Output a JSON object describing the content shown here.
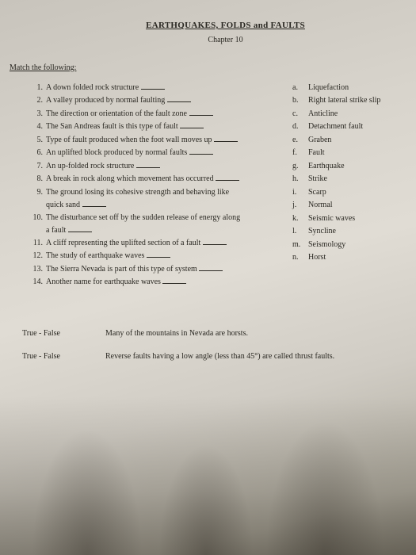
{
  "header": {
    "title": "EARTHQUAKES, FOLDS and FAULTS",
    "chapter": "Chapter 10"
  },
  "section_label": "Match the following:",
  "questions": [
    {
      "n": "1.",
      "text": "A down folded rock structure"
    },
    {
      "n": "2.",
      "text": "A valley produced by normal faulting"
    },
    {
      "n": "3.",
      "text": "The direction or orientation of the fault zone"
    },
    {
      "n": "4.",
      "text": "The San Andreas fault is this type of fault"
    },
    {
      "n": "5.",
      "text": "Type of fault produced when the foot wall moves up"
    },
    {
      "n": "6.",
      "text": "An uplifted block produced by normal faults"
    },
    {
      "n": "7.",
      "text": "An up-folded rock structure"
    },
    {
      "n": "8.",
      "text": "A break in rock along which movement has occurred"
    },
    {
      "n": "9.",
      "text": "The ground losing its cohesive strength and behaving like",
      "sub": "quick sand"
    },
    {
      "n": "10.",
      "text": "The disturbance set off by the sudden release of energy along",
      "sub": "a fault"
    },
    {
      "n": "11.",
      "text": "A cliff representing the uplifted section of a fault"
    },
    {
      "n": "12.",
      "text": "The study of earthquake waves"
    },
    {
      "n": "13.",
      "text": "The Sierra Nevada is part of this type of system"
    },
    {
      "n": "14.",
      "text": "Another name for earthquake waves"
    }
  ],
  "answers": [
    {
      "l": "a.",
      "text": "Liquefaction"
    },
    {
      "l": "b.",
      "text": "Right lateral strike slip"
    },
    {
      "l": "c.",
      "text": "Anticline"
    },
    {
      "l": "d.",
      "text": "Detachment fault"
    },
    {
      "l": "e.",
      "text": "Graben"
    },
    {
      "l": "f.",
      "text": "Fault"
    },
    {
      "l": "g.",
      "text": "Earthquake"
    },
    {
      "l": "h.",
      "text": "Strike"
    },
    {
      "l": "i.",
      "text": "Scarp"
    },
    {
      "l": "j.",
      "text": "Normal"
    },
    {
      "l": "k.",
      "text": "Seismic waves"
    },
    {
      "l": "l.",
      "text": "Syncline"
    },
    {
      "l": "m.",
      "text": "Seismology"
    },
    {
      "l": "n.",
      "text": "Horst"
    }
  ],
  "tf": {
    "label": "True - False",
    "rows": [
      "Many of the mountains in Nevada are horsts.",
      "Reverse faults having a low angle (less than 45°) are called thrust faults."
    ]
  }
}
